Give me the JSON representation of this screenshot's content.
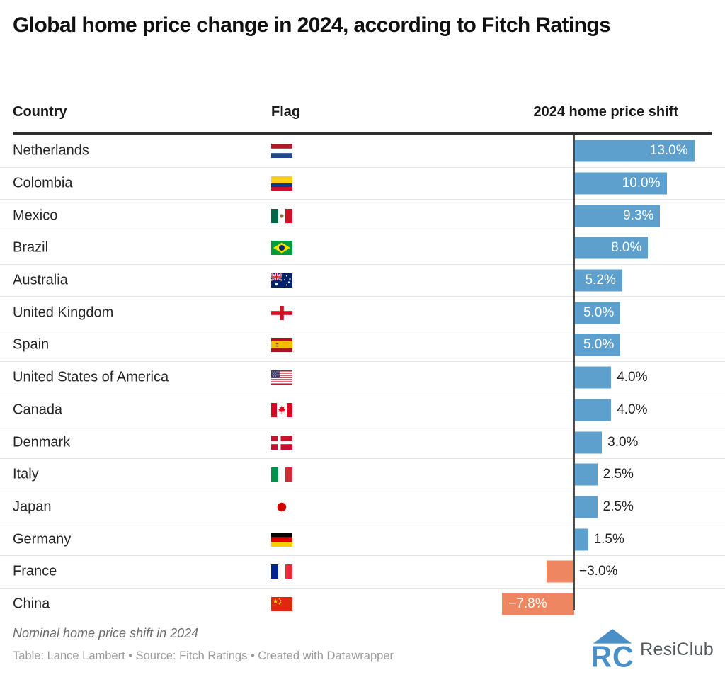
{
  "title": "Global home price change in 2024, according to Fitch Ratings",
  "columns": {
    "country": "Country",
    "flag": "Flag",
    "value": "2024 home price shift"
  },
  "rows": [
    {
      "country": "Netherlands",
      "flag": "nl",
      "value": 13.0,
      "label": "13.0%"
    },
    {
      "country": "Colombia",
      "flag": "co",
      "value": 10.0,
      "label": "10.0%"
    },
    {
      "country": "Mexico",
      "flag": "mx",
      "value": 9.3,
      "label": "9.3%"
    },
    {
      "country": "Brazil",
      "flag": "br",
      "value": 8.0,
      "label": "8.0%"
    },
    {
      "country": "Australia",
      "flag": "au",
      "value": 5.2,
      "label": "5.2%"
    },
    {
      "country": "United Kingdom",
      "flag": "gb-eng",
      "value": 5.0,
      "label": "5.0%"
    },
    {
      "country": "Spain",
      "flag": "es",
      "value": 5.0,
      "label": "5.0%"
    },
    {
      "country": "United States of America",
      "flag": "us",
      "value": 4.0,
      "label": "4.0%"
    },
    {
      "country": "Canada",
      "flag": "ca",
      "value": 4.0,
      "label": "4.0%"
    },
    {
      "country": "Denmark",
      "flag": "dk",
      "value": 3.0,
      "label": "3.0%"
    },
    {
      "country": "Italy",
      "flag": "it",
      "value": 2.5,
      "label": "2.5%"
    },
    {
      "country": "Japan",
      "flag": "jp",
      "value": 2.5,
      "label": "2.5%"
    },
    {
      "country": "Germany",
      "flag": "de",
      "value": 1.5,
      "label": "1.5%"
    },
    {
      "country": "France",
      "flag": "fr",
      "value": -3.0,
      "label": "−3.0%"
    },
    {
      "country": "China",
      "flag": "cn",
      "value": -7.8,
      "label": "−7.8%"
    }
  ],
  "footer": {
    "note": "Nominal home price shift in 2024",
    "credit": "Table: Lance Lambert • Source: Fitch Ratings • Created with Datawrapper"
  },
  "logo": {
    "text": "ResiClub",
    "monogram": "RC"
  },
  "colors": {
    "positive_bar": "#5DA0CD",
    "negative_bar": "#ED8661",
    "logo_blue": "#4A8FC5"
  },
  "chart_data": {
    "type": "bar",
    "orientation": "horizontal",
    "title": "Global home price change in 2024, according to Fitch Ratings",
    "categories": [
      "Netherlands",
      "Colombia",
      "Mexico",
      "Brazil",
      "Australia",
      "United Kingdom",
      "Spain",
      "United States of America",
      "Canada",
      "Denmark",
      "Italy",
      "Japan",
      "Germany",
      "France",
      "China"
    ],
    "values": [
      13.0,
      10.0,
      9.3,
      8.0,
      5.2,
      5.0,
      5.0,
      4.0,
      4.0,
      3.0,
      2.5,
      2.5,
      1.5,
      -3.0,
      -7.8
    ],
    "value_labels": [
      "13.0%",
      "10.0%",
      "9.3%",
      "8.0%",
      "5.2%",
      "5.0%",
      "5.0%",
      "4.0%",
      "4.0%",
      "3.0%",
      "2.5%",
      "2.5%",
      "1.5%",
      "−3.0%",
      "−7.8%"
    ],
    "unit": "%",
    "xlabel": "2024 home price shift",
    "ylabel": "Country",
    "xlim": [
      -7.8,
      13.0
    ],
    "grid": false,
    "legend": false,
    "note": "Nominal home price shift in 2024",
    "source": "Fitch Ratings",
    "positive_color": "#5DA0CD",
    "negative_color": "#ED8661"
  }
}
